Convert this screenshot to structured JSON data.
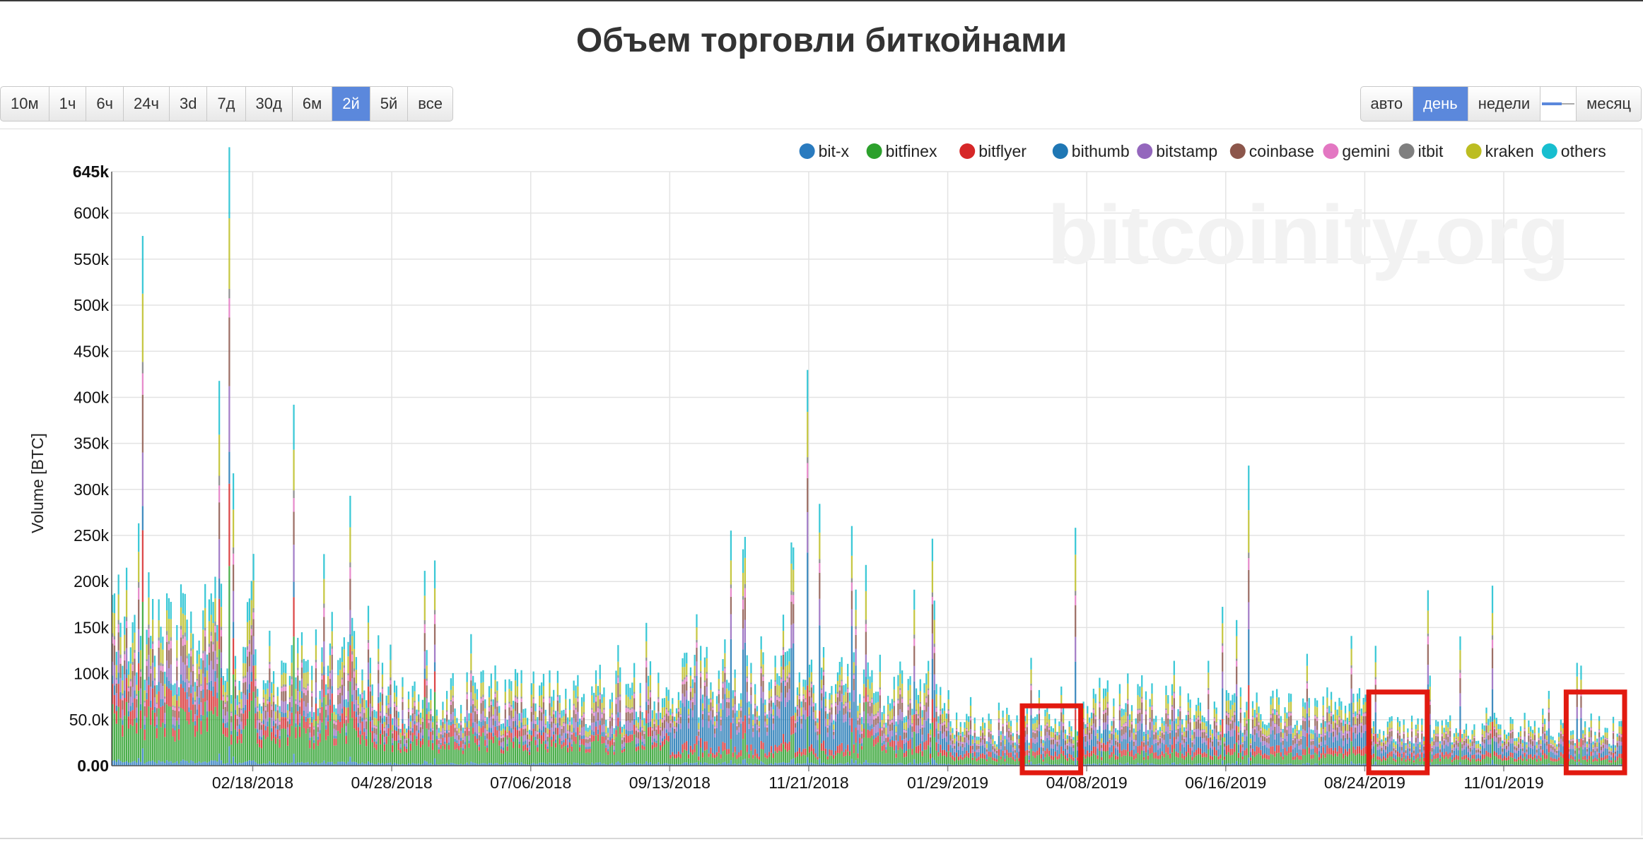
{
  "page": {
    "title": "Объем торговли биткойнами"
  },
  "range_buttons": [
    {
      "label": "10м",
      "active": false
    },
    {
      "label": "1ч",
      "active": false
    },
    {
      "label": "6ч",
      "active": false
    },
    {
      "label": "24ч",
      "active": false
    },
    {
      "label": "3d",
      "active": false
    },
    {
      "label": "7д",
      "active": false
    },
    {
      "label": "30д",
      "active": false
    },
    {
      "label": "6м",
      "active": false
    },
    {
      "label": "2й",
      "active": true
    },
    {
      "label": "5й",
      "active": false
    },
    {
      "label": "все",
      "active": false
    }
  ],
  "interval_buttons": [
    {
      "label": "авто",
      "active": false
    },
    {
      "label": "день",
      "active": true
    },
    {
      "label": "недели",
      "active": false
    },
    {
      "label": "месяц",
      "active": false
    }
  ],
  "chart_data": {
    "type": "bar",
    "stacked": true,
    "watermark": "bitcoinity.org",
    "ylabel": "Volume [BTC]",
    "ylim": [
      0,
      645000
    ],
    "grid": true,
    "legend_position": "top-right",
    "y_ticks": [
      "0.00",
      "50.0k",
      "100k",
      "150k",
      "200k",
      "250k",
      "300k",
      "350k",
      "400k",
      "450k",
      "500k",
      "550k",
      "600k",
      "645k"
    ],
    "y_tick_values": [
      0,
      50000,
      100000,
      150000,
      200000,
      250000,
      300000,
      350000,
      400000,
      450000,
      500000,
      550000,
      600000,
      645000
    ],
    "x_ticks": [
      "02/18/2018",
      "04/28/2018",
      "07/06/2018",
      "09/13/2018",
      "11/21/2018",
      "01/29/2019",
      "04/08/2019",
      "06/16/2019",
      "08/24/2019",
      "11/01/2019"
    ],
    "x_range": [
      "12/10/2017",
      "12/31/2019"
    ],
    "series": [
      {
        "name": "bit-x",
        "color": "#2a7bbf"
      },
      {
        "name": "bitfinex",
        "color": "#2ca02c"
      },
      {
        "name": "bitflyer",
        "color": "#d62728"
      },
      {
        "name": "bithumb",
        "color": "#1f77b4"
      },
      {
        "name": "bitstamp",
        "color": "#9467bd"
      },
      {
        "name": "coinbase",
        "color": "#8c564b"
      },
      {
        "name": "gemini",
        "color": "#e377c2"
      },
      {
        "name": "itbit",
        "color": "#7f7f7f"
      },
      {
        "name": "kraken",
        "color": "#bcbd22"
      },
      {
        "name": "others",
        "color": "#17becf"
      }
    ],
    "daily_total_profile": {
      "segments": [
        {
          "from": "12/10/2017",
          "to": "02/18/2018",
          "typical": 150000
        },
        {
          "from": "02/18/2018",
          "to": "04/28/2018",
          "typical": 110000
        },
        {
          "from": "04/28/2018",
          "to": "09/13/2018",
          "typical": 70000
        },
        {
          "from": "09/13/2018",
          "to": "11/21/2018",
          "typical": 90000
        },
        {
          "from": "11/21/2018",
          "to": "01/29/2019",
          "typical": 95000
        },
        {
          "from": "01/29/2019",
          "to": "04/08/2019",
          "typical": 42000
        },
        {
          "from": "04/08/2019",
          "to": "08/24/2019",
          "typical": 65000
        },
        {
          "from": "08/24/2019",
          "to": "12/31/2019",
          "typical": 38000
        }
      ],
      "peaks": [
        {
          "date": "12/25/2017",
          "total": 575000
        },
        {
          "date": "02/01/2018",
          "total": 452000
        },
        {
          "date": "02/06/2018",
          "total": 645000
        },
        {
          "date": "03/10/2018",
          "total": 366000
        },
        {
          "date": "11/20/2018",
          "total": 422000
        },
        {
          "date": "11/26/2018",
          "total": 303000
        },
        {
          "date": "06/27/2019",
          "total": 335000
        },
        {
          "date": "04/02/2019",
          "total": 240000
        },
        {
          "date": "10/26/2019",
          "total": 206000
        },
        {
          "date": "09/24/2019",
          "total": 185000
        }
      ]
    },
    "highlight_boxes": [
      {
        "from": "03/07/2019",
        "to": "04/05/2019",
        "max": 65000
      },
      {
        "from": "08/26/2019",
        "to": "09/24/2019",
        "max": 80000
      },
      {
        "from": "12/02/2019",
        "to": "12/31/2019",
        "max": 80000
      }
    ],
    "highlight_color": "#e21a10"
  }
}
